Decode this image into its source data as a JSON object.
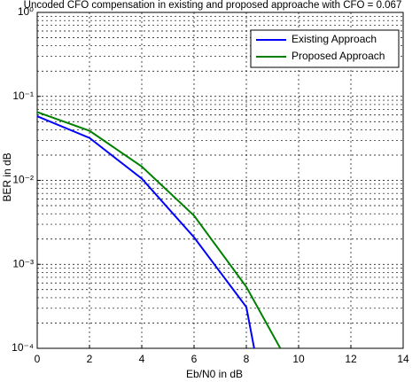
{
  "chart_data": {
    "type": "line",
    "title": "Uncoded CFO compensation in existing and proposed approache with CFO = 0.067",
    "x_label": "Eb/N0 in dB",
    "y_label": "BER in dB",
    "xlim": [
      0,
      14
    ],
    "xticks": [
      0,
      2,
      4,
      6,
      8,
      10,
      12,
      14
    ],
    "ylim": [
      0.0001,
      1
    ],
    "y_scale": "log",
    "yticks": [
      {
        "value": 0.0001,
        "label": "10⁻⁴"
      },
      {
        "value": 0.001,
        "label": "10⁻³"
      },
      {
        "value": 0.01,
        "label": "10⁻²"
      },
      {
        "value": 0.1,
        "label": "10⁻¹"
      },
      {
        "value": 1,
        "label": "10⁰"
      }
    ],
    "grid": true,
    "legend": "upper right",
    "series": [
      {
        "name": "Existing Approach",
        "color": "#0000ff",
        "x": [
          0,
          2,
          4,
          6,
          8,
          8.3
        ],
        "values": [
          0.058,
          0.032,
          0.0105,
          0.0021,
          0.00031,
          0.0001
        ]
      },
      {
        "name": "Proposed Approach",
        "color": "#008000",
        "x": [
          0,
          2,
          4,
          6,
          8,
          9.3
        ],
        "values": [
          0.065,
          0.039,
          0.0146,
          0.0038,
          0.00054,
          0.0001
        ]
      }
    ]
  }
}
